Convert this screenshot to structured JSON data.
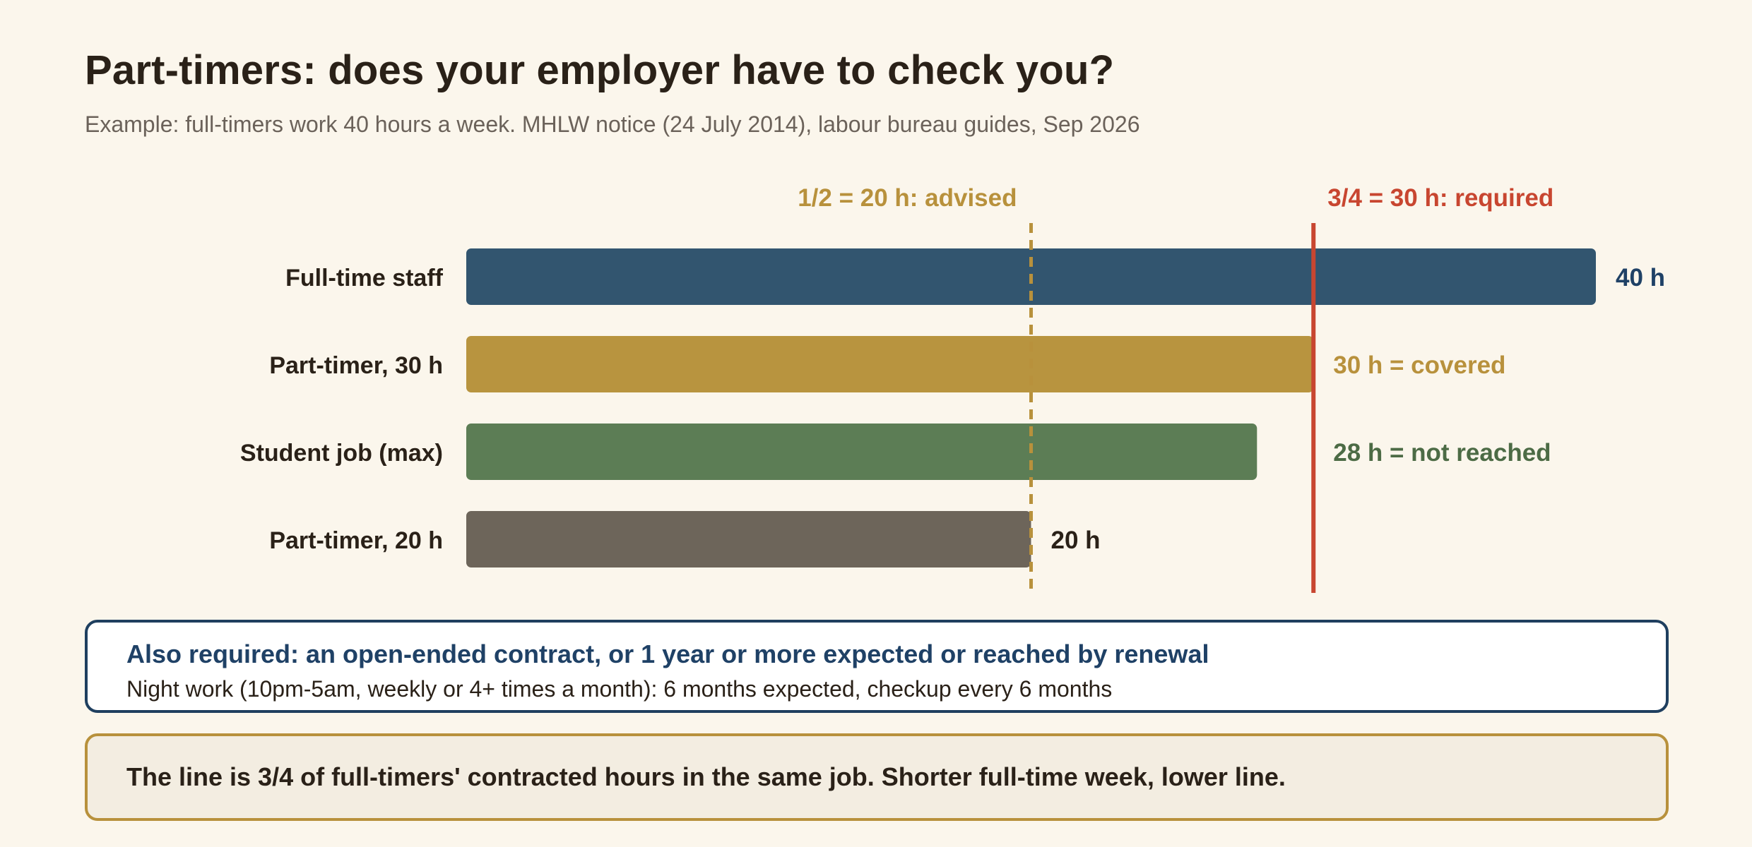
{
  "header": {
    "title": "Part-timers: does your employer have to check you?",
    "subtitle": "Example: full-timers work 40 hours a week. MHLW notice (24 July 2014), labour bureau guides, Sep 2026"
  },
  "chart_data": {
    "type": "bar",
    "orientation": "horizontal",
    "unit": "h",
    "xlim": [
      0,
      40
    ],
    "grid": false,
    "categories": [
      "Full-time staff",
      "Part-timer, 30 h",
      "Student job (max)",
      "Part-timer, 20 h"
    ],
    "values": [
      40,
      30,
      28,
      20
    ],
    "value_labels": [
      "40 h",
      "30 h = covered",
      "28 h = not reached",
      "20 h"
    ],
    "thresholds": [
      {
        "value": 20,
        "label": "1/2 = 20 h: advised",
        "style": "dashed",
        "color": "#b8913c"
      },
      {
        "value": 30,
        "label": "3/4 = 30 h: required",
        "style": "solid",
        "color": "#c84630"
      }
    ]
  },
  "colors": {
    "bars": [
      "#32556f",
      "#b8943f",
      "#5c7d55",
      "#6d655a"
    ],
    "value_labels": [
      "#1f4166",
      "#b8913c",
      "#4c6b45",
      "#2a2118"
    ]
  },
  "info_box": {
    "heading": "Also required: an open-ended contract, or 1 year or more expected or reached by renewal",
    "detail": "Night work (10pm-5am, weekly or 4+ times a month): 6 months expected, checkup every 6 months"
  },
  "note_box": {
    "text": "The line is 3/4 of full-timers' contracted hours in the same job. Shorter full-time week, lower line."
  }
}
